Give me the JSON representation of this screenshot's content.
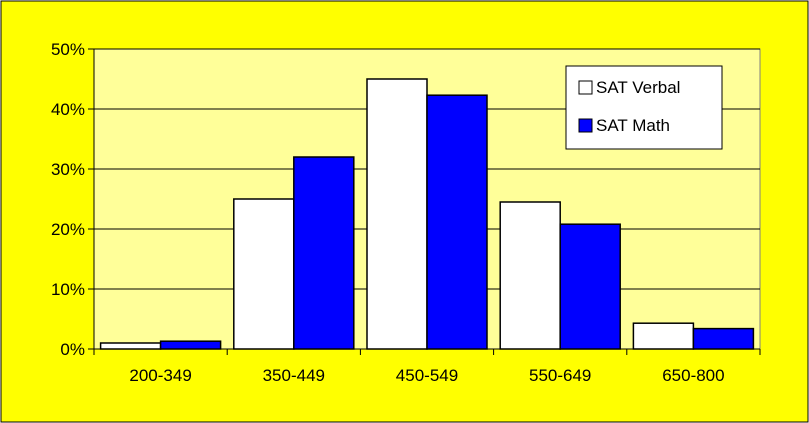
{
  "colors": {
    "background": "#FFFF00",
    "plot_area": "#FFFF99",
    "gridline": "#000000",
    "series": [
      "#FFFFFF",
      "#0000FF"
    ]
  },
  "chart_data": {
    "type": "bar",
    "categories": [
      "200-349",
      "350-449",
      "450-549",
      "550-649",
      "650-800"
    ],
    "series": [
      {
        "name": "SAT Verbal",
        "values": [
          1,
          25,
          45,
          24.5,
          4.3
        ]
      },
      {
        "name": "SAT Math",
        "values": [
          1.3,
          32,
          42.3,
          20.8,
          3.4
        ]
      }
    ],
    "ylim": [
      0,
      50
    ],
    "yticks": [
      "0%",
      "10%",
      "20%",
      "30%",
      "40%",
      "50%"
    ],
    "grid": true,
    "legend_position": "top-right",
    "title": "",
    "xlabel": "",
    "ylabel": ""
  }
}
